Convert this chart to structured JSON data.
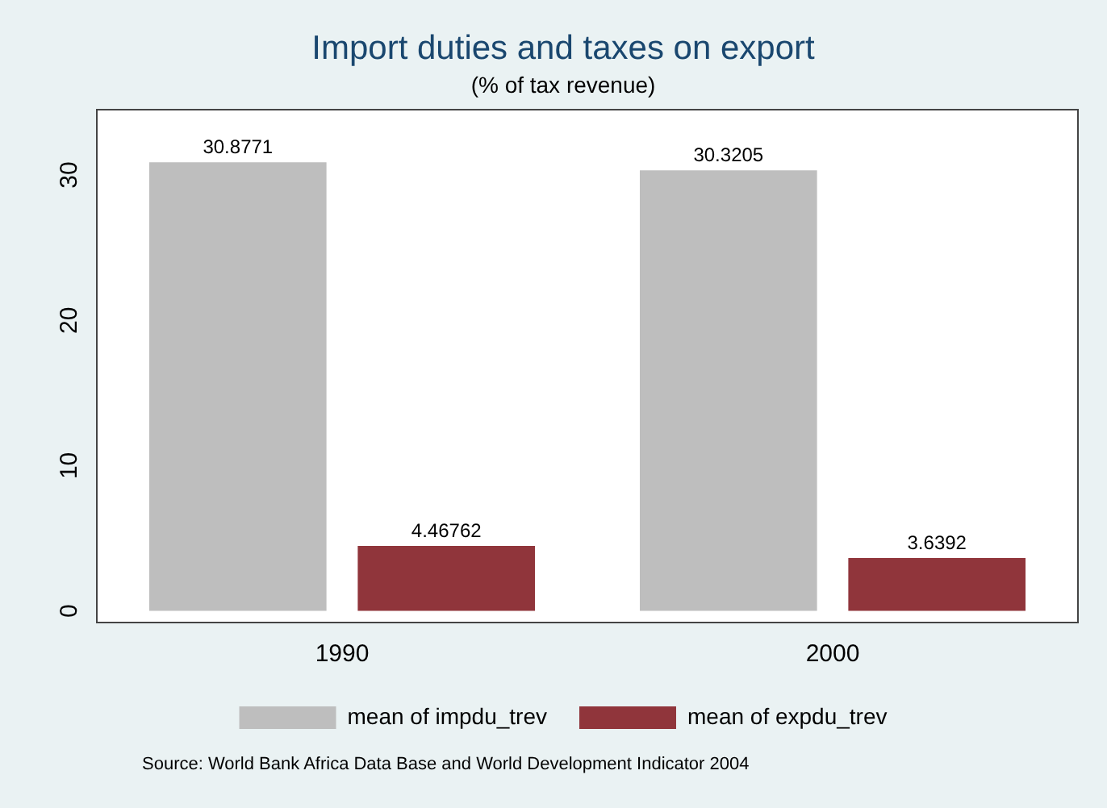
{
  "chart_data": {
    "type": "bar",
    "title": "Import duties and taxes on export",
    "subtitle": "(% of tax revenue)",
    "categories": [
      "1990",
      "2000"
    ],
    "series": [
      {
        "name": "mean of impdu_trev",
        "color": "#bebebe",
        "values": [
          30.8771,
          30.3205
        ]
      },
      {
        "name": "mean of expdu_trev",
        "color": "#90353b",
        "values": [
          4.46762,
          3.6392
        ]
      }
    ],
    "ylim": [
      -0.8,
      34.5
    ],
    "yticks": [
      0,
      10,
      20,
      30
    ],
    "grid": false,
    "legend": "bottom",
    "data_labels": true,
    "annotations": [
      "Source: World Bank Africa Data Base and World Development Indicator 2004"
    ]
  }
}
